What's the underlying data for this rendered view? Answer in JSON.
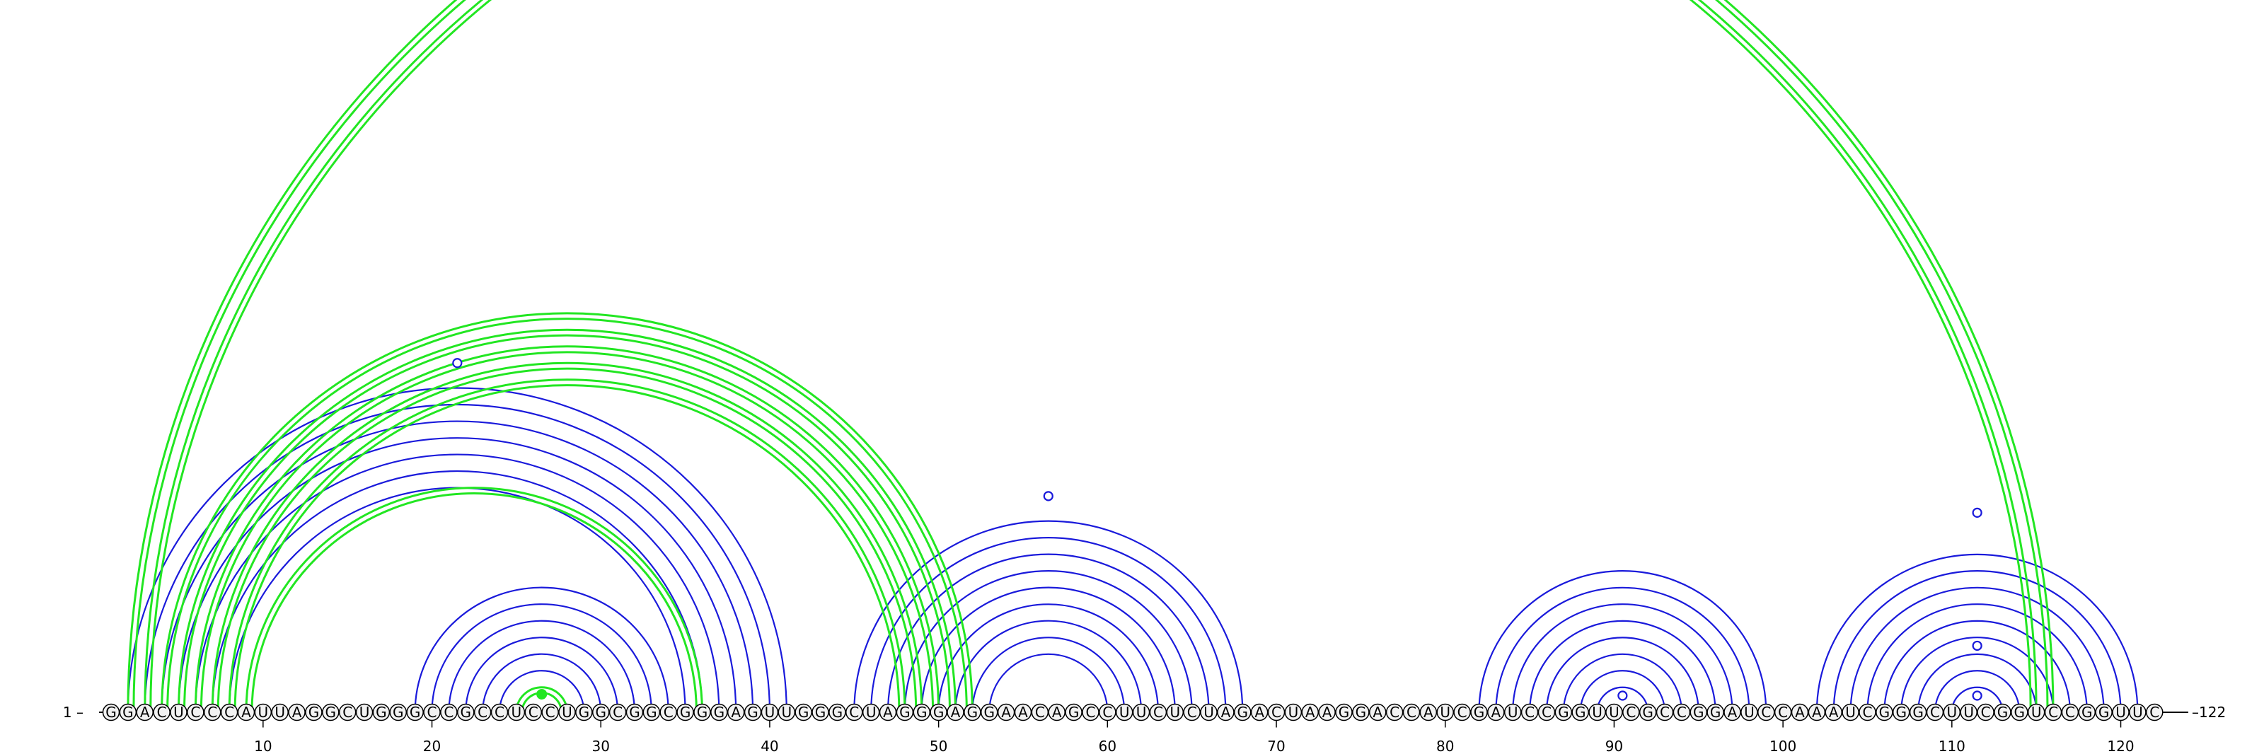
{
  "sequence": "GGACUCCCAUUAGGCUGGGCCGCCUCCUGGCGGCGGGAGUUGGGCUAGGGAGGAACAGCCUUCUCUAGACUAAGGACCAUCGAUCCGGUUCGCCGGAUCCAAAUCGGGCUUCGGUCCGGUUC",
  "start_label": "1",
  "end_label": "122",
  "ticks": [
    10,
    20,
    30,
    40,
    50,
    60,
    70,
    80,
    90,
    100,
    110,
    120
  ],
  "colors": {
    "blue": "#1a1adb",
    "green": "#22e622",
    "nucleotide_fill": "#f2f2f2",
    "outline": "#000000"
  },
  "blue_pairs": [
    [
      2,
      41
    ],
    [
      3,
      40
    ],
    [
      4,
      39
    ],
    [
      5,
      38
    ],
    [
      6,
      37
    ],
    [
      7,
      36
    ],
    [
      8,
      35
    ],
    [
      19,
      34
    ],
    [
      20,
      33
    ],
    [
      21,
      32
    ],
    [
      22,
      31
    ],
    [
      23,
      30
    ],
    [
      24,
      29
    ],
    [
      25,
      28
    ],
    [
      45,
      68
    ],
    [
      46,
      67
    ],
    [
      47,
      66
    ],
    [
      48,
      65
    ],
    [
      49,
      64
    ],
    [
      50,
      63
    ],
    [
      51,
      62
    ],
    [
      52,
      61
    ],
    [
      53,
      60
    ],
    [
      82,
      99
    ],
    [
      83,
      98
    ],
    [
      84,
      97
    ],
    [
      85,
      96
    ],
    [
      86,
      95
    ],
    [
      87,
      94
    ],
    [
      88,
      93
    ],
    [
      89,
      92
    ],
    [
      102,
      121
    ],
    [
      103,
      120
    ],
    [
      104,
      119
    ],
    [
      105,
      118
    ],
    [
      106,
      117
    ],
    [
      107,
      116
    ],
    [
      108,
      115
    ],
    [
      109,
      114
    ],
    [
      110,
      113
    ]
  ],
  "green_pairs": [
    [
      2,
      116
    ],
    [
      3,
      115
    ],
    [
      4,
      52
    ],
    [
      5,
      51
    ],
    [
      6,
      50
    ],
    [
      7,
      49
    ],
    [
      8,
      48
    ],
    [
      9,
      36
    ],
    [
      25,
      28
    ]
  ],
  "blue_markers": [
    [
      21.5,
      42
    ],
    [
      56.5,
      26
    ],
    [
      90.5,
      2
    ],
    [
      111.5,
      2
    ],
    [
      111.5,
      8
    ],
    [
      111.5,
      24
    ]
  ],
  "green_markers": [
    [
      26.5,
      2
    ]
  ]
}
